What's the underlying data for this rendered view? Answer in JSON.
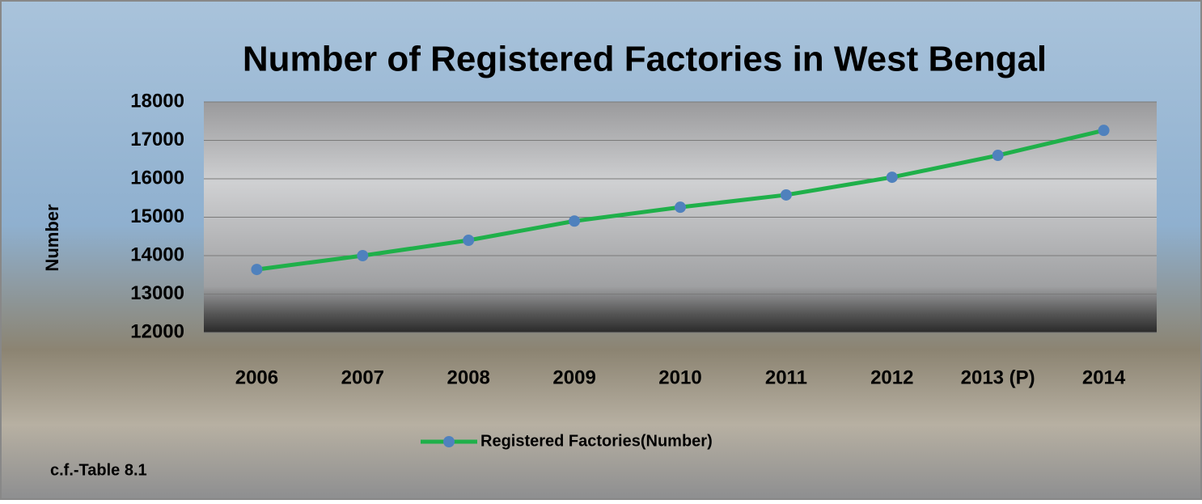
{
  "chart_data": {
    "type": "line",
    "title": "Number of Registered Factories in West Bengal",
    "y_label": "Number",
    "annotation": "c.f.-Table 8.1",
    "categories": [
      "2006",
      "2007",
      "2008",
      "2009",
      "2010",
      "2011",
      "2012",
      "2013 (P)",
      "2014"
    ],
    "series": [
      {
        "name": "Registered Factories(Number)",
        "color": "#1fb04a",
        "marker_color": "#4f81bd",
        "values": [
          13640,
          14000,
          14400,
          14900,
          15260,
          15580,
          16040,
          16610,
          17260
        ]
      }
    ],
    "ylim": [
      12000,
      18000
    ],
    "yticks": [
      12000,
      13000,
      14000,
      15000,
      16000,
      17000,
      18000
    ],
    "grid": true,
    "legend": "bottom"
  }
}
